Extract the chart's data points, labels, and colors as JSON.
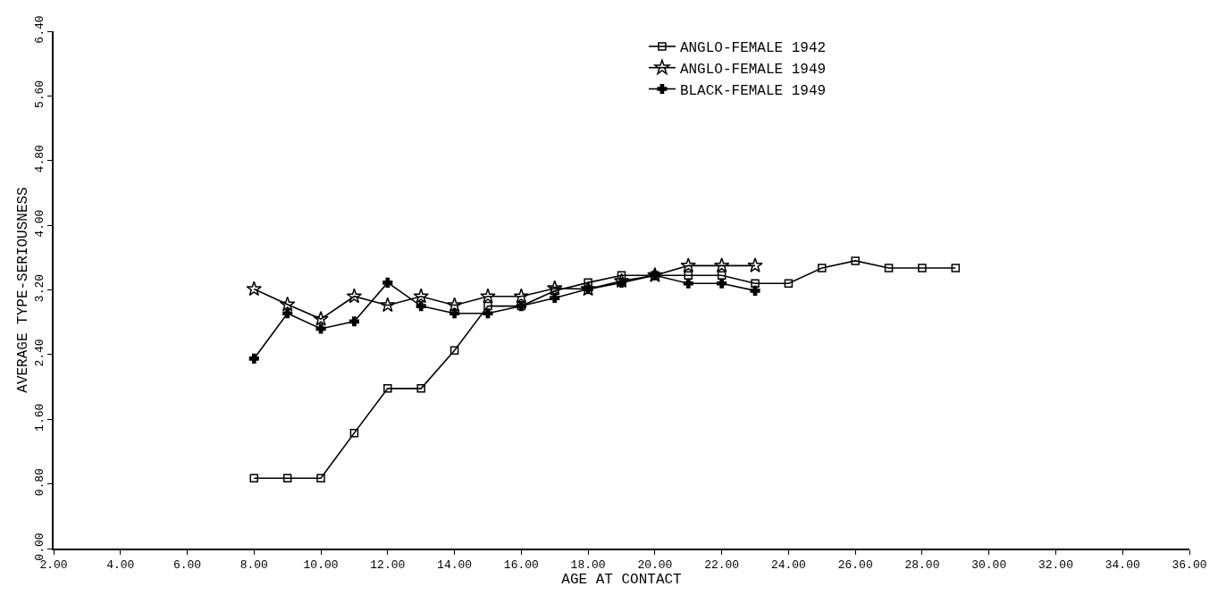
{
  "chart_data": {
    "type": "line",
    "xlabel": "AGE AT CONTACT",
    "ylabel": "AVERAGE TYPE-SERIOUSNESS",
    "xlim": [
      2,
      36
    ],
    "ylim": [
      0,
      6.4
    ],
    "xticks": [
      {
        "value": 2,
        "label": "2.00"
      },
      {
        "value": 4,
        "label": "4.00"
      },
      {
        "value": 6,
        "label": "6.00"
      },
      {
        "value": 8,
        "label": "8.00"
      },
      {
        "value": 10,
        "label": "10.00"
      },
      {
        "value": 12,
        "label": "12.00"
      },
      {
        "value": 14,
        "label": "14.00"
      },
      {
        "value": 16,
        "label": "16.00"
      },
      {
        "value": 18,
        "label": "18.00"
      },
      {
        "value": 20,
        "label": "20.00"
      },
      {
        "value": 22,
        "label": "22.00"
      },
      {
        "value": 24,
        "label": "24.00"
      },
      {
        "value": 26,
        "label": "26.00"
      },
      {
        "value": 28,
        "label": "28.00"
      },
      {
        "value": 30,
        "label": "30.00"
      },
      {
        "value": 32,
        "label": "32.00"
      },
      {
        "value": 34,
        "label": "34.00"
      },
      {
        "value": 36,
        "label": "36.00"
      }
    ],
    "yticks": [
      {
        "value": 0,
        "label": "0.00"
      },
      {
        "value": 0.8,
        "label": "0.80"
      },
      {
        "value": 1.6,
        "label": "1.60"
      },
      {
        "value": 2.4,
        "label": "2.40"
      },
      {
        "value": 3.2,
        "label": "3.20"
      },
      {
        "value": 4.0,
        "label": "4.00"
      },
      {
        "value": 4.8,
        "label": "4.80"
      },
      {
        "value": 5.6,
        "label": "5.60"
      },
      {
        "value": 6.4,
        "label": "6.40"
      }
    ],
    "legend": "top",
    "line_style": "solid",
    "series": [
      {
        "name": "ANGLO-FEMALE 1942",
        "color": "#000000",
        "marker": "square",
        "x": [
          8,
          9,
          10,
          11,
          12,
          13,
          14,
          15,
          16,
          17,
          18,
          19,
          20,
          21,
          22,
          23,
          24,
          25,
          26,
          27,
          28,
          29
        ],
        "values": [
          0.87,
          0.87,
          0.87,
          1.43,
          1.98,
          1.98,
          2.45,
          3.0,
          3.0,
          3.19,
          3.29,
          3.38,
          3.38,
          3.38,
          3.38,
          3.28,
          3.28,
          3.47,
          3.56,
          3.47,
          3.47,
          3.47
        ]
      },
      {
        "name": "ANGLO-FEMALE 1949",
        "color": "#000000",
        "marker": "star",
        "x": [
          8,
          9,
          10,
          11,
          12,
          13,
          14,
          15,
          16,
          17,
          18,
          19,
          20,
          21,
          22,
          23
        ],
        "values": [
          3.21,
          3.02,
          2.84,
          3.12,
          3.01,
          3.12,
          3.01,
          3.12,
          3.12,
          3.22,
          3.21,
          3.31,
          3.38,
          3.5,
          3.5,
          3.5
        ]
      },
      {
        "name": "BLACK-FEMALE 1949",
        "color": "#000000",
        "marker": "cross",
        "x": [
          8,
          9,
          10,
          11,
          12,
          13,
          14,
          15,
          16,
          17,
          18,
          19,
          20,
          21,
          22,
          23
        ],
        "values": [
          2.35,
          2.91,
          2.72,
          2.81,
          3.29,
          3.0,
          2.91,
          2.91,
          3.0,
          3.1,
          3.21,
          3.29,
          3.38,
          3.28,
          3.28,
          3.19
        ]
      }
    ]
  }
}
